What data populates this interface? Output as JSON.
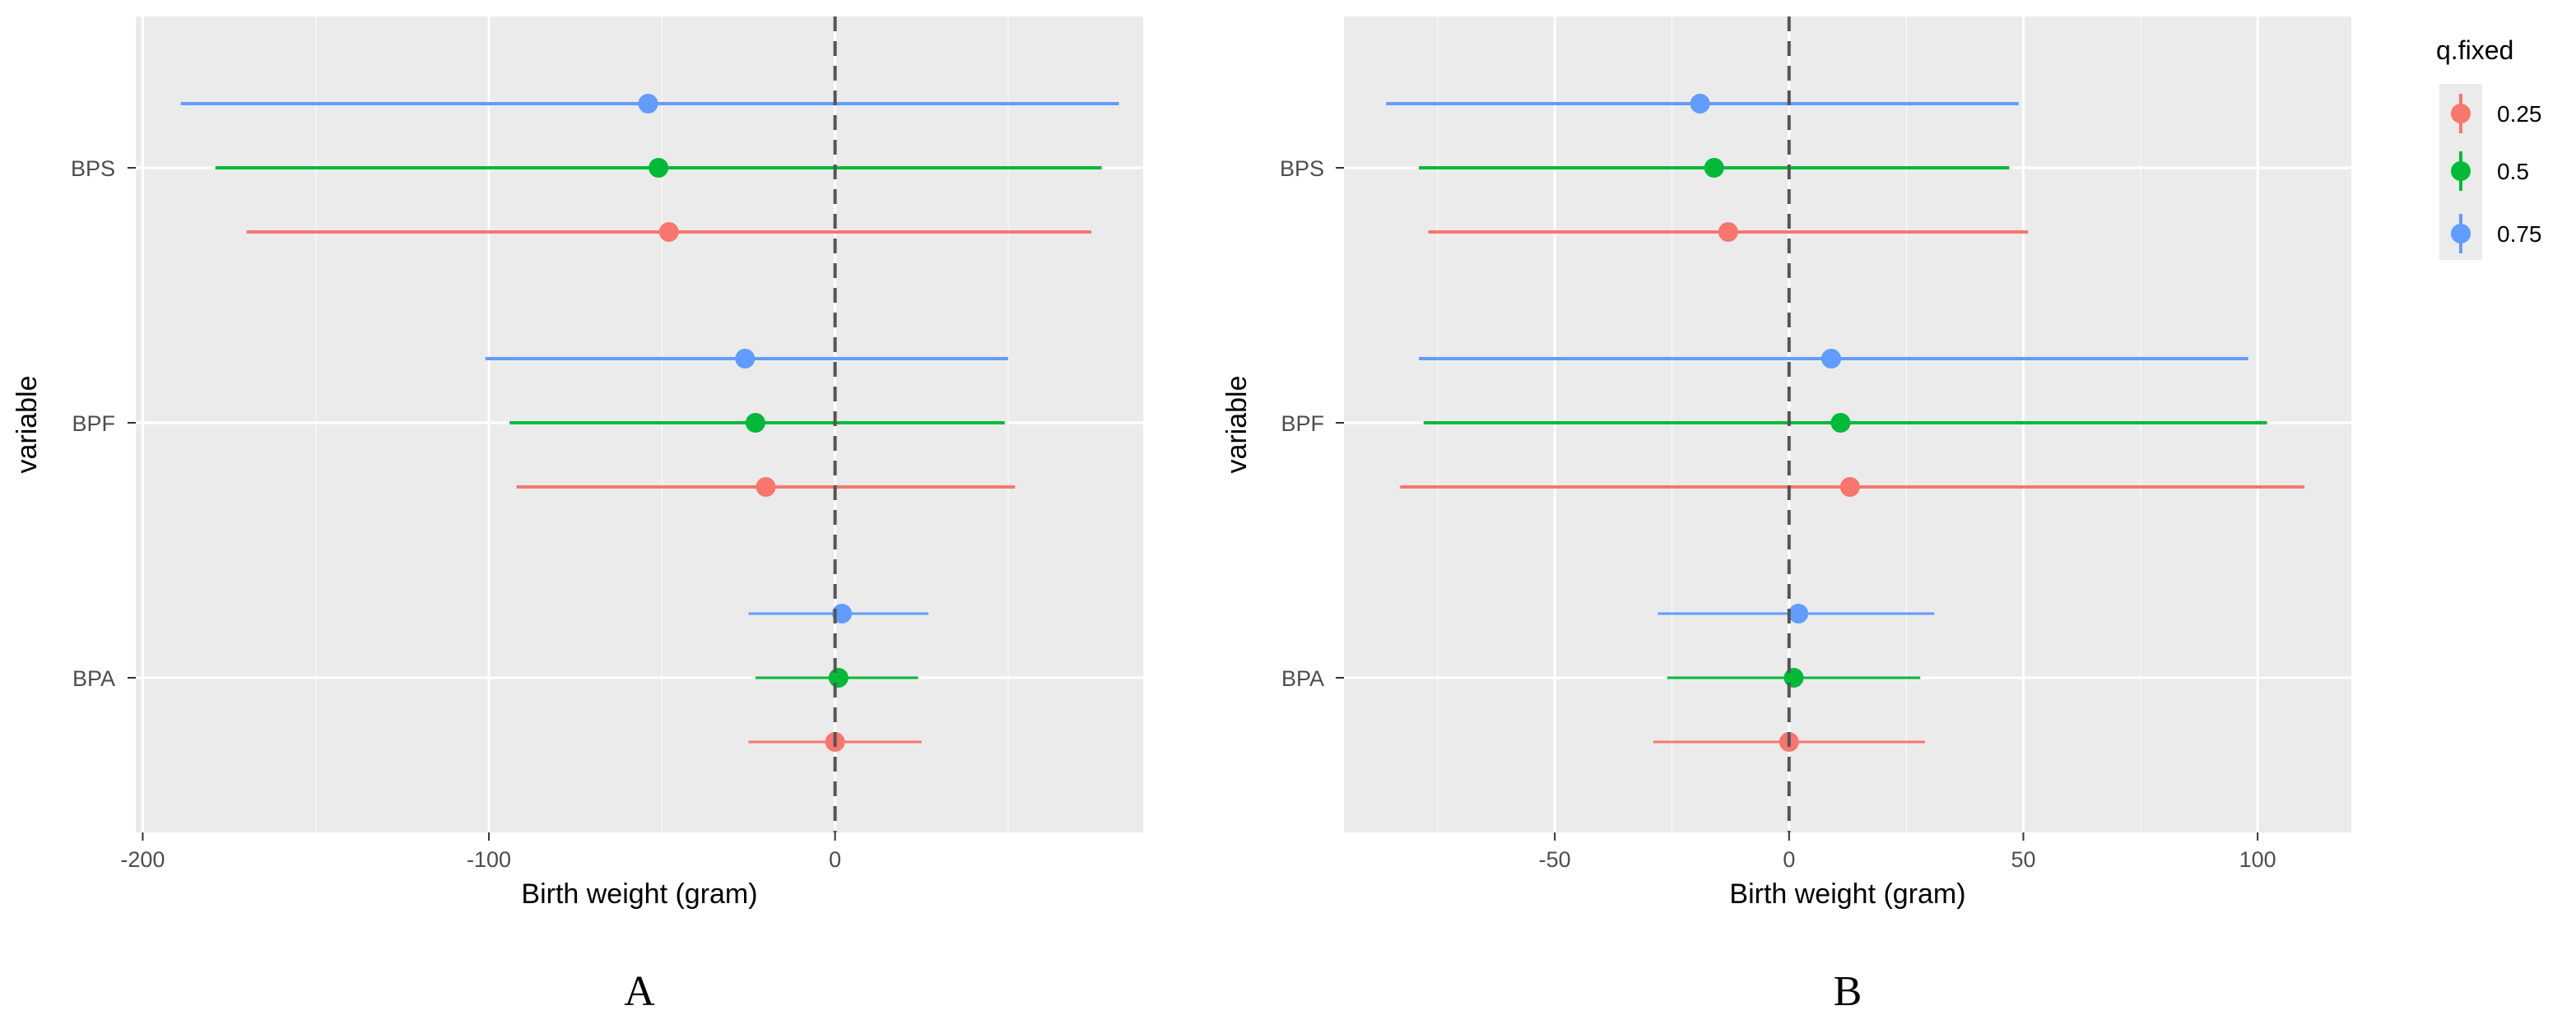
{
  "chart_data": [
    {
      "type": "forest",
      "panel_label": "A",
      "xlabel": "Birth weight (gram)",
      "ylabel": "variable",
      "xlim": [
        -202,
        89
      ],
      "xticks": [
        -200,
        -100,
        0
      ],
      "xtick_labels": [
        "-200",
        "-100",
        "0"
      ],
      "categories": [
        "BPA",
        "BPF",
        "BPS"
      ],
      "reference_line": 0,
      "grid": true,
      "series": [
        {
          "name": "0.25",
          "color": "#F8766D",
          "rows": [
            {
              "variable": "BPA",
              "estimate": 0,
              "lower": -25,
              "upper": 25
            },
            {
              "variable": "BPF",
              "estimate": -20,
              "lower": -92,
              "upper": 52
            },
            {
              "variable": "BPS",
              "estimate": -48,
              "lower": -170,
              "upper": 74
            }
          ]
        },
        {
          "name": "0.5",
          "color": "#00BA38",
          "rows": [
            {
              "variable": "BPA",
              "estimate": 1,
              "lower": -23,
              "upper": 24
            },
            {
              "variable": "BPF",
              "estimate": -23,
              "lower": -94,
              "upper": 49
            },
            {
              "variable": "BPS",
              "estimate": -51,
              "lower": -179,
              "upper": 77
            }
          ]
        },
        {
          "name": "0.75",
          "color": "#619CFF",
          "rows": [
            {
              "variable": "BPA",
              "estimate": 2,
              "lower": -25,
              "upper": 27
            },
            {
              "variable": "BPF",
              "estimate": -26,
              "lower": -101,
              "upper": 50
            },
            {
              "variable": "BPS",
              "estimate": -54,
              "lower": -189,
              "upper": 82
            }
          ]
        }
      ]
    },
    {
      "type": "forest",
      "panel_label": "B",
      "xlabel": "Birth weight (gram)",
      "ylabel": "variable",
      "xlim": [
        -95,
        120
      ],
      "xticks": [
        -50,
        0,
        50,
        100
      ],
      "xtick_labels": [
        "-50",
        "0",
        "50",
        "100"
      ],
      "categories": [
        "BPA",
        "BPF",
        "BPS"
      ],
      "reference_line": 0,
      "grid": true,
      "series": [
        {
          "name": "0.25",
          "color": "#F8766D",
          "rows": [
            {
              "variable": "BPA",
              "estimate": 0,
              "lower": -29,
              "upper": 29
            },
            {
              "variable": "BPF",
              "estimate": 13,
              "lower": -83,
              "upper": 110
            },
            {
              "variable": "BPS",
              "estimate": -13,
              "lower": -77,
              "upper": 51
            }
          ]
        },
        {
          "name": "0.5",
          "color": "#00BA38",
          "rows": [
            {
              "variable": "BPA",
              "estimate": 1,
              "lower": -26,
              "upper": 28
            },
            {
              "variable": "BPF",
              "estimate": 11,
              "lower": -78,
              "upper": 102
            },
            {
              "variable": "BPS",
              "estimate": -16,
              "lower": -79,
              "upper": 47
            }
          ]
        },
        {
          "name": "0.75",
          "color": "#619CFF",
          "rows": [
            {
              "variable": "BPA",
              "estimate": 2,
              "lower": -28,
              "upper": 31
            },
            {
              "variable": "BPF",
              "estimate": 9,
              "lower": -79,
              "upper": 98
            },
            {
              "variable": "BPS",
              "estimate": -19,
              "lower": -86,
              "upper": 49
            }
          ]
        }
      ]
    }
  ],
  "legend": {
    "title": "q.fixed",
    "position": "right",
    "items": [
      {
        "label": "0.25",
        "color": "#F8766D"
      },
      {
        "label": "0.5",
        "color": "#00BA38"
      },
      {
        "label": "0.75",
        "color": "#619CFF"
      }
    ]
  }
}
